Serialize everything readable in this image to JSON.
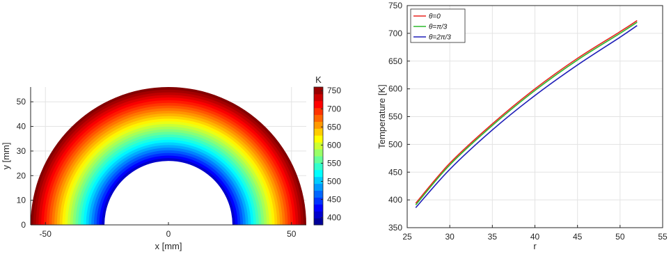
{
  "chart_data": [
    {
      "type": "heatmap",
      "xlabel": "x [mm]",
      "ylabel": "y [mm]",
      "xlim": [
        -56,
        56
      ],
      "ylim": [
        0,
        56
      ],
      "xticks": [
        "-50",
        "0",
        "50"
      ],
      "xtick_values": [
        -50,
        0,
        50
      ],
      "yticks": [
        "0",
        "10",
        "20",
        "30",
        "40",
        "50"
      ],
      "ytick_values": [
        0,
        10,
        20,
        30,
        40,
        50
      ],
      "inner_radius": 26,
      "outer_radius": 56,
      "colorbar": {
        "title": "K",
        "range": [
          380,
          760
        ],
        "ticks": [
          "400",
          "450",
          "500",
          "550",
          "600",
          "650",
          "700",
          "750"
        ],
        "tick_values": [
          400,
          450,
          500,
          550,
          600,
          650,
          700,
          750
        ],
        "colormap": "jet",
        "levels": 20
      },
      "grid": true
    },
    {
      "type": "line",
      "xlabel": "r",
      "ylabel": "Temperature [K]",
      "xlim": [
        25,
        55
      ],
      "ylim": [
        350,
        750
      ],
      "xticks": [
        "25",
        "30",
        "35",
        "40",
        "45",
        "50",
        "55"
      ],
      "xtick_values": [
        25,
        30,
        35,
        40,
        45,
        50,
        55
      ],
      "yticks": [
        "350",
        "400",
        "450",
        "500",
        "550",
        "600",
        "650",
        "700",
        "750"
      ],
      "ytick_values": [
        350,
        400,
        450,
        500,
        550,
        600,
        650,
        700,
        750
      ],
      "grid": true,
      "legend_position": "top-left",
      "x": [
        26,
        30,
        35,
        40,
        45,
        50,
        52
      ],
      "series": [
        {
          "name": "θ=0",
          "color": "#e8231e",
          "values": [
            394,
            466,
            537,
            600,
            655,
            703,
            723
          ]
        },
        {
          "name": "θ=π/3",
          "color": "#2db82d",
          "values": [
            391,
            463,
            534,
            597,
            652,
            700,
            720
          ]
        },
        {
          "name": "θ=2π/3",
          "color": "#1f1fb8",
          "values": [
            386,
            455,
            526,
            588,
            643,
            693,
            714
          ]
        }
      ]
    }
  ]
}
